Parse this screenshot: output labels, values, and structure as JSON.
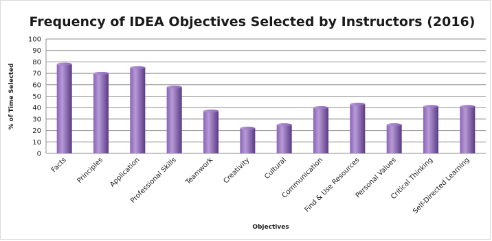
{
  "chart_data": {
    "type": "bar",
    "title": "Frequency of IDEA Objectives Selected by Instructors (2016)",
    "xlabel": "Objectives",
    "ylabel": "% of Time Selected",
    "ylim": [
      0,
      100
    ],
    "yticks": [
      0,
      10,
      20,
      30,
      40,
      50,
      60,
      70,
      80,
      90,
      100
    ],
    "grid": true,
    "legend": "none",
    "categories": [
      "Facts",
      "Principles",
      "Application",
      "Professional Skills",
      "Teamwork",
      "Creativity",
      "Cultural",
      "Communication",
      "Find & Use Resources",
      "Personal Values",
      "Critical Thinking",
      "Self-Directed Learning"
    ],
    "values": [
      78,
      70,
      75,
      58,
      37,
      22,
      25,
      40,
      43,
      25,
      41,
      41
    ],
    "colors": {
      "bar_light": "#b79bd6",
      "bar_mid": "#8a62b8",
      "bar_dark": "#5a3a86",
      "grid": "#8c8c8c"
    }
  }
}
